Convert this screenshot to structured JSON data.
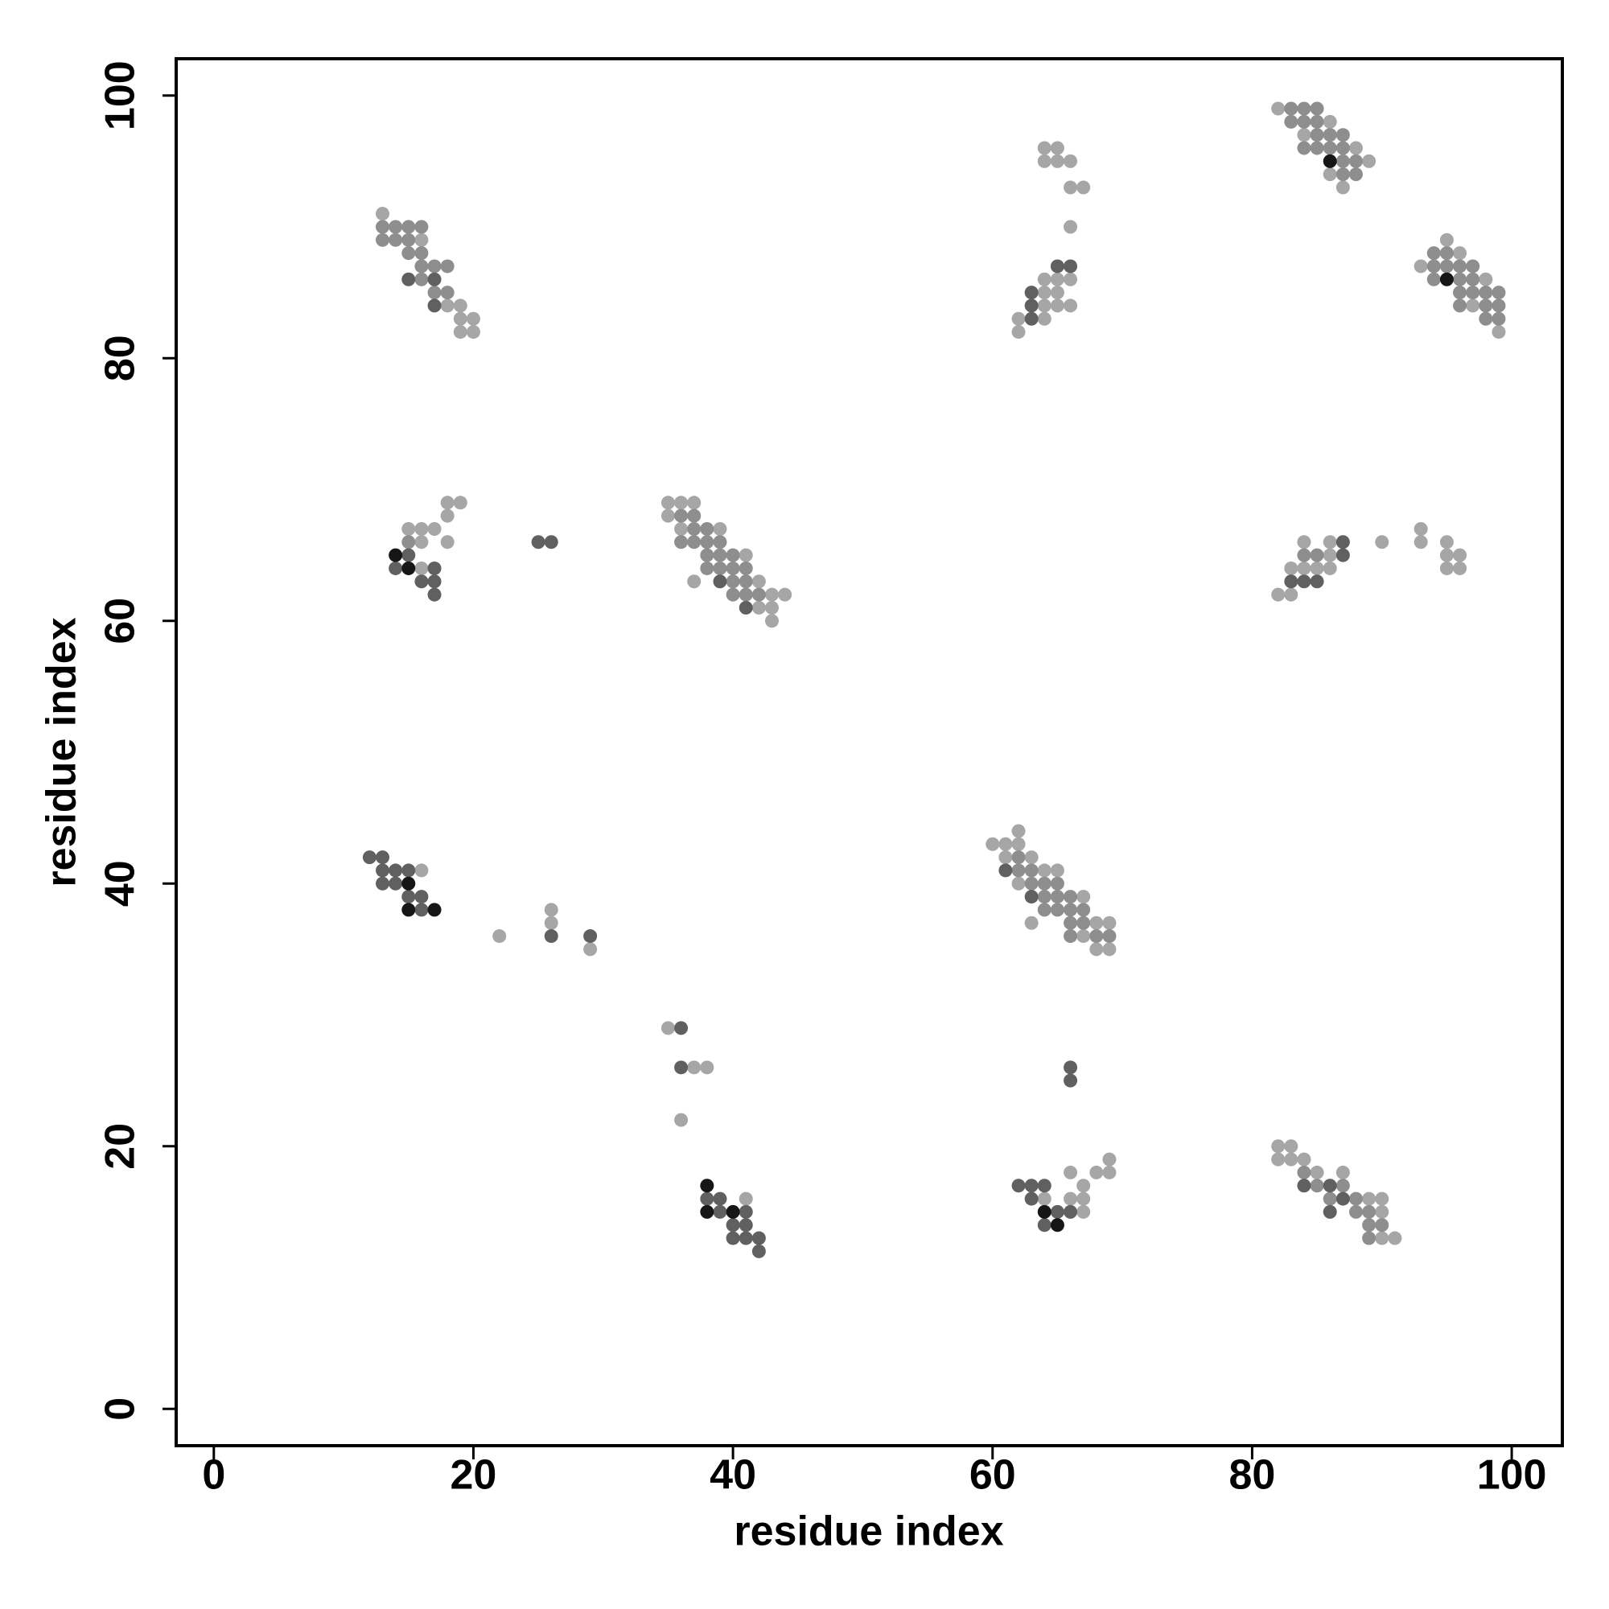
{
  "chart_data": {
    "type": "scatter",
    "xlabel": "residue index",
    "ylabel": "residue index",
    "xlim": [
      -2.9,
      103.9
    ],
    "ylim": [
      -2.8,
      102.8
    ],
    "xticks": [
      0,
      20,
      40,
      60,
      80,
      100
    ],
    "yticks": [
      0,
      20,
      40,
      60,
      80,
      100
    ],
    "series": [
      {
        "color": "#a6a6a6",
        "x": [
          13,
          16,
          18,
          19,
          19,
          20,
          19,
          20,
          64,
          65,
          64,
          65,
          66,
          66,
          67,
          66,
          64,
          65,
          66,
          64,
          65,
          64,
          65,
          66,
          62,
          64,
          62,
          82,
          86,
          84,
          88,
          89,
          86,
          87,
          95,
          96,
          93,
          98,
          97,
          99,
          18,
          19,
          18,
          15,
          16,
          17,
          16,
          18,
          16,
          35,
          36,
          37,
          35,
          36,
          39,
          41,
          37,
          42,
          43,
          44,
          42,
          43,
          43,
          93,
          84,
          86,
          90,
          93,
          95,
          86,
          95,
          96,
          83,
          84,
          85,
          86,
          95,
          96,
          82,
          83,
          16,
          22,
          26,
          26,
          29,
          62,
          60,
          61,
          62,
          61,
          63,
          64,
          65,
          62,
          67,
          63,
          68,
          69,
          67,
          68,
          69,
          35,
          37,
          38,
          36,
          41,
          69,
          66,
          68,
          69,
          67,
          64,
          66,
          67,
          67,
          82,
          83,
          82,
          83,
          84,
          85,
          87,
          89,
          90,
          90,
          90,
          91
        ],
        "y": [
          91,
          89,
          84,
          84,
          83,
          83,
          82,
          82,
          96,
          96,
          95,
          95,
          95,
          93,
          93,
          90,
          86,
          86,
          86,
          85,
          85,
          84,
          84,
          84,
          83,
          83,
          82,
          99,
          98,
          97,
          96,
          95,
          94,
          93,
          89,
          88,
          87,
          86,
          84,
          82,
          69,
          69,
          68,
          67,
          67,
          67,
          66,
          66,
          64,
          69,
          69,
          69,
          68,
          67,
          67,
          65,
          63,
          63,
          62,
          62,
          61,
          61,
          60,
          67,
          66,
          66,
          66,
          66,
          66,
          65,
          65,
          65,
          64,
          64,
          64,
          64,
          64,
          64,
          62,
          62,
          41,
          36,
          38,
          37,
          35,
          44,
          43,
          43,
          43,
          42,
          42,
          41,
          41,
          40,
          39,
          37,
          37,
          37,
          36,
          35,
          35,
          29,
          26,
          26,
          22,
          16,
          19,
          18,
          18,
          18,
          17,
          16,
          16,
          16,
          15,
          20,
          20,
          19,
          19,
          19,
          18,
          18,
          16,
          16,
          15,
          13,
          13
        ]
      },
      {
        "color": "#8e8e8e",
        "x": [
          13,
          14,
          15,
          16,
          13,
          14,
          15,
          15,
          16,
          16,
          17,
          18,
          16,
          17,
          18,
          83,
          84,
          85,
          83,
          84,
          85,
          85,
          86,
          87,
          84,
          85,
          86,
          87,
          87,
          88,
          87,
          88,
          94,
          95,
          94,
          95,
          96,
          97,
          94,
          96,
          97,
          96,
          97,
          98,
          99,
          96,
          98,
          99,
          98,
          99,
          15,
          36,
          37,
          37,
          38,
          36,
          37,
          38,
          39,
          38,
          39,
          40,
          38,
          39,
          40,
          41,
          40,
          41,
          40,
          41,
          42,
          84,
          85,
          62,
          62,
          63,
          63,
          64,
          65,
          64,
          65,
          66,
          64,
          65,
          66,
          67,
          66,
          67,
          66,
          68,
          69,
          84,
          85,
          87,
          86,
          88,
          88,
          89,
          89,
          90,
          89
        ],
        "y": [
          90,
          90,
          90,
          90,
          89,
          89,
          89,
          88,
          88,
          87,
          87,
          87,
          86,
          85,
          85,
          99,
          99,
          99,
          98,
          98,
          98,
          97,
          97,
          97,
          96,
          96,
          96,
          96,
          95,
          95,
          94,
          94,
          88,
          88,
          87,
          87,
          87,
          87,
          86,
          86,
          86,
          85,
          85,
          85,
          85,
          84,
          84,
          84,
          83,
          83,
          66,
          68,
          68,
          67,
          67,
          66,
          66,
          66,
          66,
          65,
          65,
          65,
          64,
          64,
          64,
          64,
          63,
          63,
          62,
          62,
          62,
          65,
          65,
          42,
          41,
          41,
          40,
          40,
          40,
          39,
          39,
          39,
          38,
          38,
          38,
          38,
          37,
          37,
          36,
          36,
          36,
          18,
          17,
          17,
          16,
          16,
          15,
          15,
          14,
          14,
          13
        ]
      },
      {
        "color": "#606060",
        "x": [
          15,
          17,
          17,
          65,
          66,
          63,
          63,
          63,
          15,
          14,
          17,
          16,
          17,
          17,
          25,
          26,
          39,
          41,
          87,
          87,
          83,
          84,
          85,
          12,
          13,
          13,
          14,
          15,
          13,
          14,
          15,
          16,
          16,
          26,
          29,
          61,
          63,
          36,
          36,
          66,
          66,
          38,
          39,
          39,
          41,
          40,
          41,
          40,
          41,
          42,
          42,
          62,
          63,
          64,
          63,
          65,
          66,
          64,
          84,
          86,
          87,
          86
        ],
        "y": [
          86,
          86,
          84,
          87,
          87,
          85,
          84,
          83,
          65,
          64,
          64,
          63,
          63,
          62,
          66,
          66,
          63,
          61,
          66,
          65,
          63,
          63,
          63,
          42,
          42,
          41,
          41,
          41,
          40,
          40,
          39,
          39,
          38,
          36,
          36,
          41,
          39,
          29,
          26,
          26,
          25,
          16,
          16,
          15,
          15,
          14,
          14,
          13,
          13,
          13,
          12,
          17,
          17,
          17,
          16,
          15,
          15,
          14,
          17,
          17,
          16,
          15
        ]
      },
      {
        "color": "#161616",
        "x": [
          86,
          95,
          14,
          15,
          15,
          15,
          17,
          38,
          38,
          40,
          64,
          65
        ],
        "y": [
          95,
          86,
          65,
          64,
          40,
          38,
          38,
          17,
          15,
          15,
          15,
          14
        ]
      }
    ]
  }
}
